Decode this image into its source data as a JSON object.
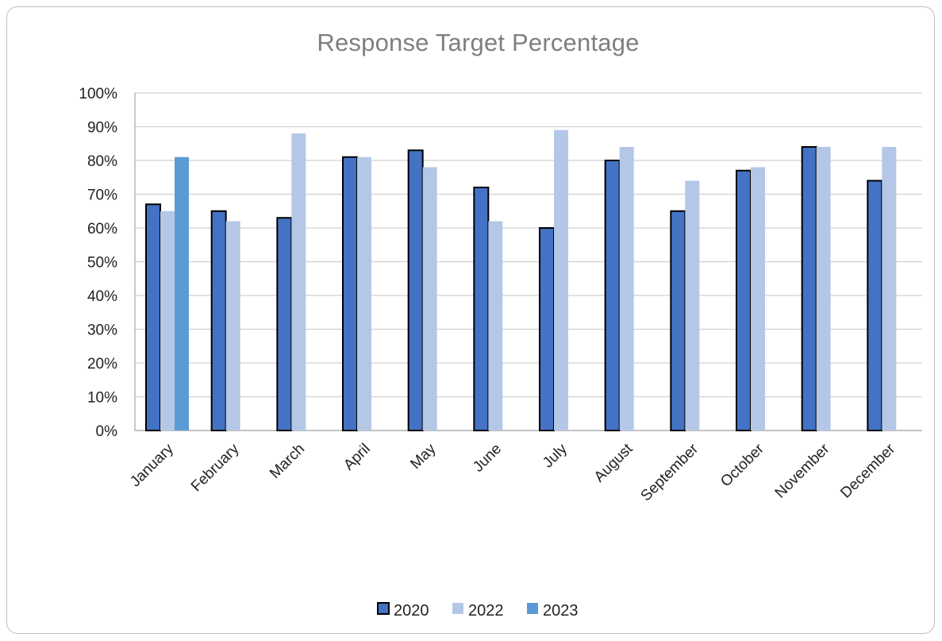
{
  "chart_data": {
    "type": "bar",
    "title": "Response Target Percentage",
    "xlabel": "",
    "ylabel": "",
    "ylim": [
      0,
      100
    ],
    "y_ticks": [
      "0%",
      "10%",
      "20%",
      "30%",
      "40%",
      "50%",
      "60%",
      "70%",
      "80%",
      "90%",
      "100%"
    ],
    "grid": true,
    "legend_position": "bottom",
    "categories": [
      "January",
      "February",
      "March",
      "April",
      "May",
      "June",
      "July",
      "August",
      "September",
      "October",
      "November",
      "December"
    ],
    "series": [
      {
        "name": "2020",
        "color": "#4472c4",
        "outlined": true,
        "values": [
          67,
          65,
          63,
          81,
          83,
          72,
          60,
          80,
          65,
          77,
          84,
          74
        ]
      },
      {
        "name": "2022",
        "color": "#b4c7e7",
        "outlined": false,
        "values": [
          65,
          62,
          88,
          81,
          78,
          62,
          89,
          84,
          74,
          78,
          84,
          84
        ]
      },
      {
        "name": "2023",
        "color": "#5b9bd5",
        "outlined": false,
        "values": [
          81,
          null,
          null,
          null,
          null,
          null,
          null,
          null,
          null,
          null,
          null,
          null
        ]
      }
    ]
  }
}
